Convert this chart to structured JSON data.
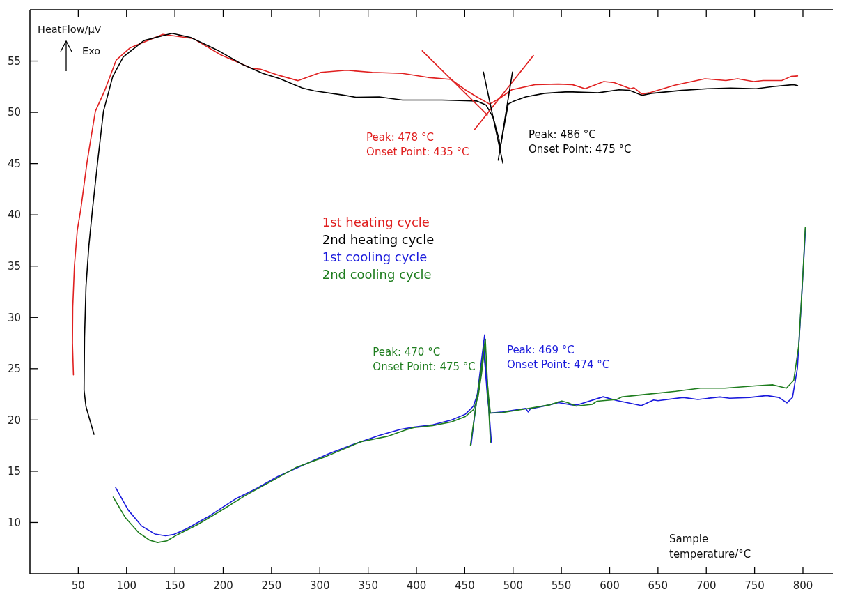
{
  "chart_data": {
    "type": "line",
    "xlabel": "Sample\ntemperature/°C",
    "ylabel": "HeatFlow/µV",
    "xlim": [
      0,
      831
    ],
    "ylim": [
      5,
      60
    ],
    "xticks": [
      50,
      100,
      150,
      200,
      250,
      300,
      350,
      400,
      450,
      500,
      550,
      600,
      650,
      700,
      750,
      800
    ],
    "yticks": [
      10,
      15,
      20,
      25,
      30,
      35,
      40,
      45,
      50,
      55
    ],
    "grid": false,
    "legend": "center",
    "line_style": "solid",
    "marker": "none",
    "annotations": [
      "Exo",
      "Peak: 478 °C\nOnset Point: 435 °C",
      "Peak: 486 °C\nOnset Point: 475 °C",
      "Peak: 469 °C\nOnset Point: 474 °C",
      "Peak: 470 °C\nOnset Point: 475 °C"
    ],
    "series": [
      {
        "name": "1st heating cycle",
        "color": "#e02020",
        "x": [
          45.0,
          44.0,
          44.3,
          46,
          49,
          52.7,
          59.2,
          67.7,
          77.3,
          89.3,
          103.8,
          137.5,
          168.8,
          197.7,
          229,
          238.6,
          257.9,
          277.2,
          301.2,
          327.7,
          354.2,
          385.5,
          412,
          436.1,
          450.5,
          462.6,
          475.8,
          486.7,
          498.7,
          522.8,
          546.9,
          561.4,
          574.6,
          593.9,
          604.7,
          621.6,
          625.2,
          633.2,
          640.9,
          667.3,
          698.6,
          720.3,
          732.4,
          749.2,
          758.8,
          778.1,
          787.7,
          794.5
        ],
        "values": [
          24.4,
          27.5,
          31,
          35,
          38.5,
          40.6,
          45.2,
          50.1,
          52.1,
          55.1,
          56.3,
          57.6,
          57.2,
          55.6,
          54.3,
          54.2,
          53.6,
          53.09,
          53.9,
          54.1,
          53.9,
          53.8,
          53.4,
          53.2,
          52.2,
          51.5,
          50.8,
          51.4,
          52.2,
          52.7,
          52.75,
          52.7,
          52.3,
          53.0,
          52.9,
          52.3,
          52.4,
          51.78,
          51.9,
          52.64,
          53.27,
          53.1,
          53.27,
          53.0,
          53.1,
          53.1,
          53.5,
          53.55
        ]
      },
      {
        "name": "2nd heating cycle",
        "color": "#000000",
        "x": [
          66.3,
          58,
          56,
          56.5,
          58,
          61,
          64.8,
          70.1,
          76.1,
          85.7,
          96.6,
          118,
          147.1,
          166.4,
          195.3,
          219.4,
          241,
          257.9,
          282,
          294,
          323,
          337.4,
          361.4,
          385.5,
          426.5,
          462.6,
          472.2,
          479.4,
          485.4,
          486.7,
          491,
          495,
          501,
          513,
          532.5,
          556.6,
          587.9,
          609.6,
          620.4,
          633.6,
          643.3,
          674.6,
          701.1,
          725.1,
          751.6,
          768.5,
          790.2,
          794.5
        ],
        "values": [
          18.6,
          21.3,
          22.9,
          28,
          33,
          37,
          40.6,
          45.2,
          50.1,
          53.5,
          55.4,
          57.0,
          57.7,
          57.3,
          56.0,
          54.7,
          53.8,
          53.3,
          52.37,
          52.1,
          51.7,
          51.46,
          51.5,
          51.2,
          51.2,
          51.1,
          50.7,
          49.5,
          47.4,
          46.5,
          48.8,
          50.8,
          51.1,
          51.5,
          51.85,
          52.0,
          51.9,
          52.2,
          52.15,
          51.66,
          51.85,
          52.14,
          52.3,
          52.37,
          52.3,
          52.5,
          52.7,
          52.6
        ]
      },
      {
        "name": "1st cooling cycle",
        "color": "#1a1adc",
        "x": [
          88.7,
          101.6,
          115.5,
          129.3,
          140.4,
          148.7,
          162.5,
          184.6,
          212.2,
          234.4,
          256.5,
          284.1,
          309,
          333.9,
          361.6,
          383.7,
          397.6,
          416.9,
          436.1,
          450.6,
          459,
          463.8,
          467,
          469.4,
          471.1,
          473.5,
          475.9,
          489.1,
          513.2,
          515.6,
          518,
          537.3,
          546.9,
          561.4,
          566.6,
          593.3,
          607.3,
          632.8,
          645.5,
          650,
          676,
          691.3,
          714.2,
          724.3,
          744.7,
          762.5,
          775.2,
          783.4,
          789.2,
          794.3,
          798.1,
          802.7
        ],
        "values": [
          13.4,
          11.23,
          9.67,
          8.88,
          8.7,
          8.83,
          9.4,
          10.57,
          12.27,
          13.31,
          14.48,
          15.65,
          16.69,
          17.6,
          18.5,
          19.09,
          19.3,
          19.53,
          19.99,
          20.56,
          21.35,
          22.7,
          24.75,
          27.02,
          25.2,
          22.26,
          20.67,
          20.78,
          21.12,
          20.78,
          21.08,
          21.46,
          21.69,
          21.46,
          21.47,
          22.26,
          21.9,
          21.4,
          21.95,
          21.88,
          22.19,
          22.0,
          22.24,
          22.12,
          22.19,
          22.38,
          22.19,
          21.66,
          22.19,
          25.06,
          31.05,
          38.71
        ]
      },
      {
        "name": "2nd cooling cycle",
        "color": "#1e7d1e",
        "x": [
          86.2,
          98.9,
          112.7,
          123.8,
          132.1,
          141.7,
          151.4,
          173.5,
          201.2,
          223.3,
          253.7,
          275.8,
          306.2,
          342.2,
          369.9,
          389.2,
          397.6,
          416.9,
          436.1,
          450.6,
          459,
          463.8,
          467.4,
          470.3,
          472.3,
          474.7,
          476.6,
          489.1,
          513.2,
          537.3,
          550.5,
          556.5,
          565.3,
          581.9,
          587,
          607.3,
          612.4,
          637.8,
          668.4,
          693.8,
          719.3,
          752.3,
          768.9,
          782.9,
          790.5,
          795.6,
          800.2,
          802.4
        ],
        "values": [
          12.48,
          10.45,
          9.0,
          8.28,
          8.05,
          8.21,
          8.75,
          9.79,
          11.36,
          12.66,
          14.22,
          15.39,
          16.43,
          17.86,
          18.4,
          19.04,
          19.26,
          19.45,
          19.81,
          20.33,
          21.0,
          22.26,
          24.5,
          26.8,
          24.75,
          22.26,
          20.67,
          20.72,
          21.08,
          21.46,
          21.85,
          21.69,
          21.35,
          21.52,
          21.83,
          22.0,
          22.24,
          22.5,
          22.79,
          23.1,
          23.1,
          23.34,
          23.43,
          23.1,
          23.87,
          27.22,
          34.64,
          38.76
        ]
      },
      {
        "color": "#e02020",
        "x": [
          406,
          473.4
        ],
        "values": [
          56.0,
          49.74
        ]
      },
      {
        "color": "#e02020",
        "x": [
          460.2,
          521.1
        ],
        "values": [
          48.33,
          55.54
        ]
      },
      {
        "color": "#000000",
        "x": [
          469.3,
          489.5
        ],
        "values": [
          53.93,
          45.04
        ]
      },
      {
        "color": "#000000",
        "x": [
          499.4,
          484.7
        ],
        "values": [
          53.93,
          45.34
        ]
      },
      {
        "color": "#1a1adc",
        "x": [
          456.6,
          470.6
        ],
        "values": [
          17.6,
          28.3
        ]
      },
      {
        "color": "#1a1adc",
        "x": [
          469.4,
          477.6
        ],
        "values": [
          27.7,
          17.83
        ]
      },
      {
        "color": "#1e7d1e",
        "x": [
          455.9,
          471.3
        ],
        "values": [
          17.54,
          27.88
        ]
      },
      {
        "color": "#1e7d1e",
        "x": [
          471.3,
          476.6
        ],
        "values": [
          27.88,
          17.83
        ]
      }
    ]
  }
}
